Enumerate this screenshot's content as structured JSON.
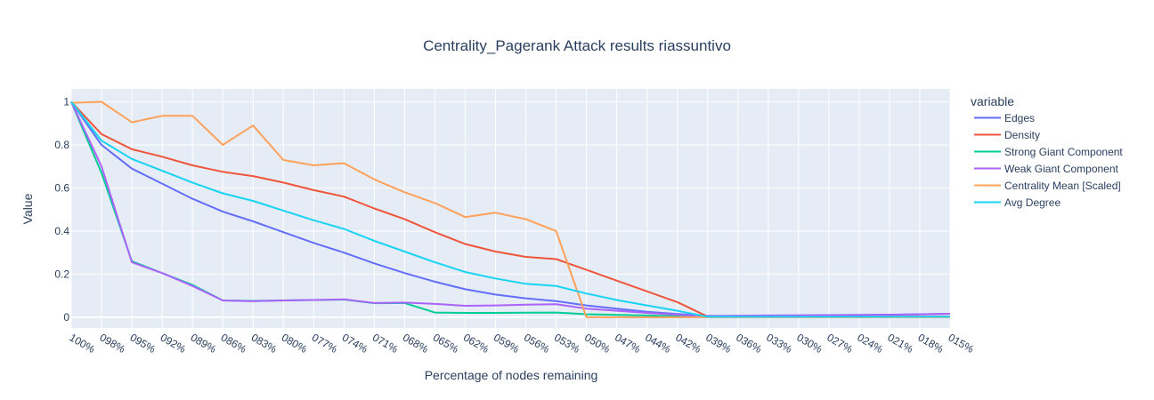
{
  "chart_data": {
    "type": "line",
    "title": "Centrality_Pagerank Attack results riassuntivo",
    "xlabel": "Percentage of nodes remaining",
    "ylabel": "Value",
    "categories": [
      "100%",
      "098%",
      "095%",
      "092%",
      "089%",
      "086%",
      "083%",
      "080%",
      "077%",
      "074%",
      "071%",
      "068%",
      "065%",
      "062%",
      "059%",
      "056%",
      "053%",
      "050%",
      "047%",
      "044%",
      "042%",
      "039%",
      "036%",
      "033%",
      "030%",
      "027%",
      "024%",
      "021%",
      "018%",
      "015%"
    ],
    "y_ticks": [
      0,
      0.2,
      0.4,
      0.6,
      0.8,
      1
    ],
    "y_tick_labels": [
      "0",
      "0.2",
      "0.4",
      "0.6",
      "0.8",
      "1"
    ],
    "ylim": [
      -0.05,
      1.06
    ],
    "grid": true,
    "legend_title": "variable",
    "legend_position": "right",
    "plot_bgcolor": "#e5ecf6",
    "series": [
      {
        "name": "Edges",
        "color": "#636efa",
        "values": [
          1,
          0.8,
          0.69,
          0.62,
          0.55,
          0.49,
          0.445,
          0.395,
          0.345,
          0.3,
          0.25,
          0.205,
          0.165,
          0.13,
          0.105,
          0.088,
          0.075,
          0.055,
          0.04,
          0.025,
          0.015,
          0.006,
          0.007,
          0.008,
          0.009,
          0.01,
          0.011,
          0.012,
          0.014,
          0.016
        ]
      },
      {
        "name": "Density",
        "color": "#EF553B",
        "values": [
          1,
          0.85,
          0.78,
          0.745,
          0.705,
          0.675,
          0.655,
          0.625,
          0.59,
          0.56,
          0.505,
          0.455,
          0.395,
          0.34,
          0.305,
          0.28,
          0.27,
          0.22,
          0.17,
          0.12,
          0.07,
          0.003,
          0.003,
          0.003,
          0.003,
          0.003,
          0.003,
          0.003,
          0.003,
          0.003
        ]
      },
      {
        "name": "Strong Giant Component",
        "color": "#00cc96",
        "values": [
          1,
          0.67,
          0.26,
          0.205,
          0.15,
          0.078,
          0.076,
          0.078,
          0.08,
          0.082,
          0.065,
          0.066,
          0.022,
          0.02,
          0.02,
          0.021,
          0.022,
          0.014,
          0.011,
          0.008,
          0.005,
          0.002,
          0.002,
          0.002,
          0.002,
          0.002,
          0.002,
          0.002,
          0.002,
          0.002
        ]
      },
      {
        "name": "Weak Giant Component",
        "color": "#ab63fa",
        "values": [
          1,
          0.7,
          0.255,
          0.205,
          0.145,
          0.078,
          0.074,
          0.078,
          0.08,
          0.083,
          0.066,
          0.068,
          0.062,
          0.053,
          0.055,
          0.058,
          0.06,
          0.04,
          0.03,
          0.02,
          0.012,
          0.005,
          0.006,
          0.007,
          0.008,
          0.009,
          0.01,
          0.011,
          0.013,
          0.016
        ]
      },
      {
        "name": "Centrality Mean [Scaled]",
        "color": "#FFA15A",
        "values": [
          0.995,
          1.0,
          0.905,
          0.935,
          0.935,
          0.8,
          0.89,
          0.73,
          0.705,
          0.715,
          0.64,
          0.58,
          0.53,
          0.465,
          0.485,
          0.455,
          0.4,
          0.0,
          0.0,
          0.0,
          0.0,
          0.0,
          0.0,
          0.0,
          0.0,
          0.0,
          0.0,
          0.0,
          0.0,
          0.0
        ]
      },
      {
        "name": "Avg Degree",
        "color": "#19d3f3",
        "values": [
          1,
          0.82,
          0.735,
          0.68,
          0.625,
          0.575,
          0.54,
          0.495,
          0.45,
          0.41,
          0.355,
          0.305,
          0.255,
          0.21,
          0.18,
          0.155,
          0.145,
          0.11,
          0.08,
          0.055,
          0.03,
          0.002,
          0.002,
          0.002,
          0.002,
          0.002,
          0.002,
          0.002,
          0.002,
          0.002
        ]
      }
    ]
  }
}
